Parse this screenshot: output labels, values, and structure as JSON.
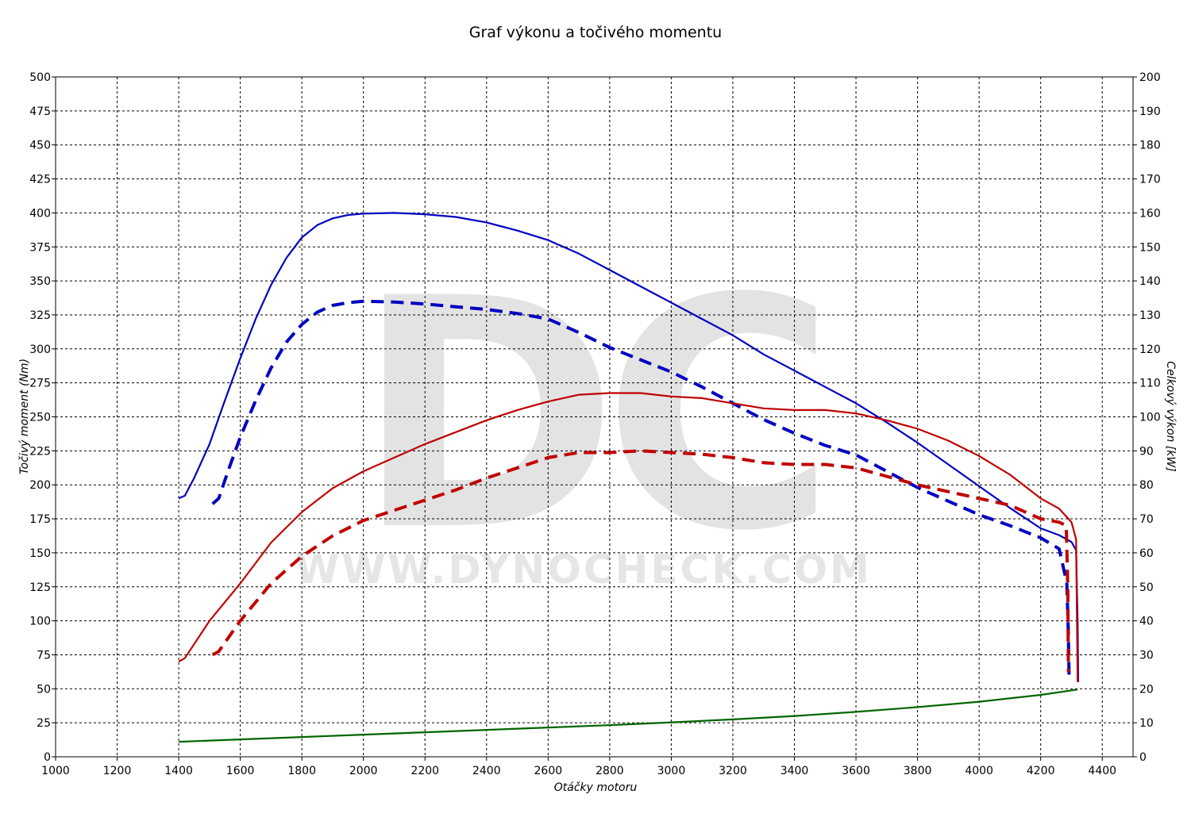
{
  "chart_data": {
    "type": "line",
    "title": "Graf výkonu a točivého momentu",
    "xlabel": "Otáčky motoru",
    "ylabel_left": "Točivý moment (Nm)",
    "ylabel_right": "Celkový výkon [kW]",
    "xlim": [
      1000,
      4500
    ],
    "ylim_left": [
      0,
      500
    ],
    "ylim_right": [
      0,
      200
    ],
    "x_ticks": [
      "1000",
      "1200",
      "1400",
      "1600",
      "1800",
      "2000",
      "2200",
      "2400",
      "2600",
      "2800",
      "3000",
      "3200",
      "3400",
      "3600",
      "3800",
      "4000",
      "4200",
      "4400"
    ],
    "y_ticks_left": [
      "0",
      "25",
      "50",
      "75",
      "100",
      "125",
      "150",
      "175",
      "200",
      "225",
      "250",
      "275",
      "300",
      "325",
      "350",
      "375",
      "400",
      "425",
      "450",
      "475",
      "500"
    ],
    "y_ticks_right": [
      "0",
      "10",
      "20",
      "30",
      "40",
      "50",
      "60",
      "70",
      "80",
      "90",
      "100",
      "110",
      "120",
      "130",
      "140",
      "150",
      "160",
      "170",
      "180",
      "190",
      "200"
    ],
    "grid": true,
    "watermark": "WWW.DYNOCHECK.COM",
    "watermark_logo": "DC",
    "series": [
      {
        "id": "torque-tuned",
        "axis": "left",
        "color": "#0000c0",
        "dash": false,
        "points": [
          [
            1400,
            190
          ],
          [
            1420,
            192
          ],
          [
            1450,
            205
          ],
          [
            1500,
            230
          ],
          [
            1550,
            262
          ],
          [
            1600,
            293
          ],
          [
            1650,
            322
          ],
          [
            1700,
            347
          ],
          [
            1750,
            367
          ],
          [
            1800,
            382
          ],
          [
            1850,
            391
          ],
          [
            1900,
            396
          ],
          [
            1950,
            398.5
          ],
          [
            2000,
            399.5
          ],
          [
            2100,
            400
          ],
          [
            2200,
            399
          ],
          [
            2300,
            397
          ],
          [
            2400,
            393
          ],
          [
            2500,
            387
          ],
          [
            2600,
            380
          ],
          [
            2700,
            370
          ],
          [
            2800,
            358
          ],
          [
            2900,
            346
          ],
          [
            3000,
            334
          ],
          [
            3100,
            322
          ],
          [
            3200,
            310
          ],
          [
            3300,
            296
          ],
          [
            3400,
            284
          ],
          [
            3500,
            272
          ],
          [
            3600,
            260
          ],
          [
            3700,
            246
          ],
          [
            3800,
            231
          ],
          [
            3900,
            215
          ],
          [
            4000,
            199
          ],
          [
            4100,
            183
          ],
          [
            4200,
            168
          ],
          [
            4260,
            163
          ],
          [
            4300,
            158
          ],
          [
            4315,
            152
          ],
          [
            4320,
            100
          ],
          [
            4322,
            55
          ]
        ]
      },
      {
        "id": "torque-stock",
        "axis": "left",
        "color": "#0000c0",
        "dash": true,
        "points": [
          [
            1510,
            186
          ],
          [
            1530,
            190
          ],
          [
            1560,
            210
          ],
          [
            1600,
            235
          ],
          [
            1650,
            262
          ],
          [
            1700,
            286
          ],
          [
            1750,
            305
          ],
          [
            1800,
            318
          ],
          [
            1850,
            327
          ],
          [
            1900,
            332
          ],
          [
            1950,
            334
          ],
          [
            2000,
            335
          ],
          [
            2100,
            334.5
          ],
          [
            2200,
            333
          ],
          [
            2300,
            331
          ],
          [
            2400,
            329
          ],
          [
            2500,
            326
          ],
          [
            2600,
            322
          ],
          [
            2700,
            312
          ],
          [
            2800,
            301
          ],
          [
            2900,
            292
          ],
          [
            3000,
            283
          ],
          [
            3100,
            272
          ],
          [
            3200,
            260
          ],
          [
            3300,
            248
          ],
          [
            3400,
            238
          ],
          [
            3500,
            229
          ],
          [
            3600,
            222
          ],
          [
            3700,
            210
          ],
          [
            3800,
            198
          ],
          [
            3900,
            188
          ],
          [
            4000,
            178
          ],
          [
            4100,
            170
          ],
          [
            4200,
            161
          ],
          [
            4260,
            153
          ],
          [
            4285,
            128
          ],
          [
            4290,
            90
          ],
          [
            4292,
            60
          ]
        ]
      },
      {
        "id": "power-tuned",
        "axis": "right",
        "color": "#c00000",
        "dash": false,
        "points": [
          [
            1400,
            28
          ],
          [
            1420,
            29
          ],
          [
            1500,
            40
          ],
          [
            1600,
            51
          ],
          [
            1700,
            63
          ],
          [
            1800,
            72
          ],
          [
            1900,
            79
          ],
          [
            2000,
            84
          ],
          [
            2100,
            88
          ],
          [
            2200,
            92
          ],
          [
            2300,
            95.5
          ],
          [
            2400,
            99
          ],
          [
            2500,
            102
          ],
          [
            2600,
            104.5
          ],
          [
            2700,
            106.5
          ],
          [
            2800,
            107
          ],
          [
            2900,
            107
          ],
          [
            3000,
            106
          ],
          [
            3100,
            105.5
          ],
          [
            3200,
            104
          ],
          [
            3300,
            102.5
          ],
          [
            3400,
            102
          ],
          [
            3500,
            102
          ],
          [
            3600,
            101
          ],
          [
            3700,
            99
          ],
          [
            3800,
            96.5
          ],
          [
            3900,
            93
          ],
          [
            4000,
            88.5
          ],
          [
            4100,
            83
          ],
          [
            4200,
            76
          ],
          [
            4260,
            73
          ],
          [
            4300,
            69
          ],
          [
            4315,
            64
          ],
          [
            4318,
            40
          ],
          [
            4320,
            22
          ]
        ]
      },
      {
        "id": "power-stock",
        "axis": "right",
        "color": "#c00000",
        "dash": true,
        "points": [
          [
            1510,
            30
          ],
          [
            1530,
            31
          ],
          [
            1600,
            40
          ],
          [
            1700,
            51
          ],
          [
            1800,
            59
          ],
          [
            1900,
            65
          ],
          [
            2000,
            69.5
          ],
          [
            2100,
            72.5
          ],
          [
            2200,
            75.5
          ],
          [
            2300,
            78.5
          ],
          [
            2400,
            82
          ],
          [
            2500,
            85
          ],
          [
            2600,
            88
          ],
          [
            2700,
            89.5
          ],
          [
            2800,
            89.5
          ],
          [
            2900,
            90
          ],
          [
            3000,
            89.5
          ],
          [
            3100,
            89
          ],
          [
            3200,
            88
          ],
          [
            3300,
            86.5
          ],
          [
            3400,
            86
          ],
          [
            3500,
            86
          ],
          [
            3600,
            85
          ],
          [
            3700,
            82.5
          ],
          [
            3800,
            80
          ],
          [
            3900,
            78
          ],
          [
            4000,
            76
          ],
          [
            4100,
            74
          ],
          [
            4200,
            70
          ],
          [
            4260,
            69
          ],
          [
            4283,
            68
          ],
          [
            4288,
            50
          ],
          [
            4290,
            25
          ]
        ]
      },
      {
        "id": "loss-curve",
        "axis": "left",
        "color": "#006400",
        "dash": false,
        "points": [
          [
            1400,
            11
          ],
          [
            1600,
            12.8
          ],
          [
            1800,
            14.5
          ],
          [
            2000,
            16.3
          ],
          [
            2200,
            18
          ],
          [
            2400,
            19.8
          ],
          [
            2600,
            21.5
          ],
          [
            2800,
            23.3
          ],
          [
            3000,
            25.3
          ],
          [
            3200,
            27.5
          ],
          [
            3400,
            30
          ],
          [
            3600,
            33
          ],
          [
            3800,
            36.5
          ],
          [
            4000,
            40.5
          ],
          [
            4200,
            45.5
          ],
          [
            4320,
            49.5
          ]
        ]
      }
    ]
  }
}
